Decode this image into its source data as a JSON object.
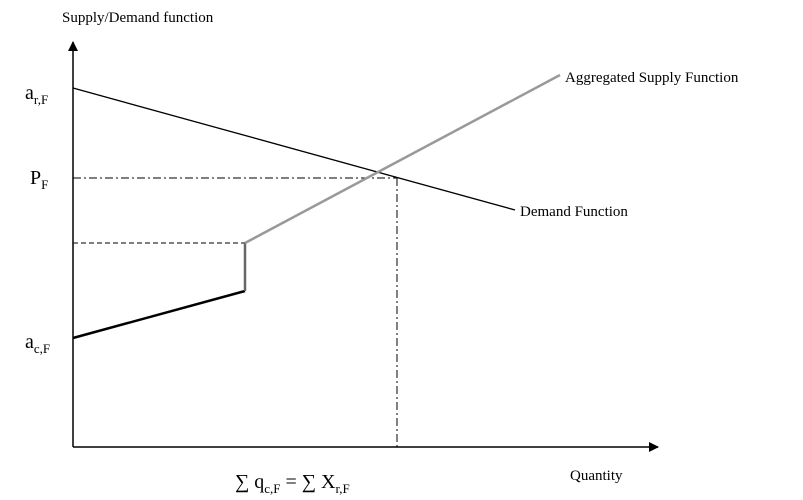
{
  "y_axis_label": "Supply/Demand function",
  "x_axis_label": "Quantity",
  "supply_label": "Aggregated Supply Function",
  "demand_label": "Demand Function",
  "y_marks": [
    {
      "base": "a",
      "sub": "r,F"
    },
    {
      "base": "P",
      "sub": "F"
    },
    {
      "base": "a",
      "sub": "c,F"
    }
  ],
  "x_mark": {
    "left_sum": "∑ q",
    "left_sub": "c,F",
    "equals": " = ",
    "right_sum": "∑ X",
    "right_sub": "r,F"
  }
}
